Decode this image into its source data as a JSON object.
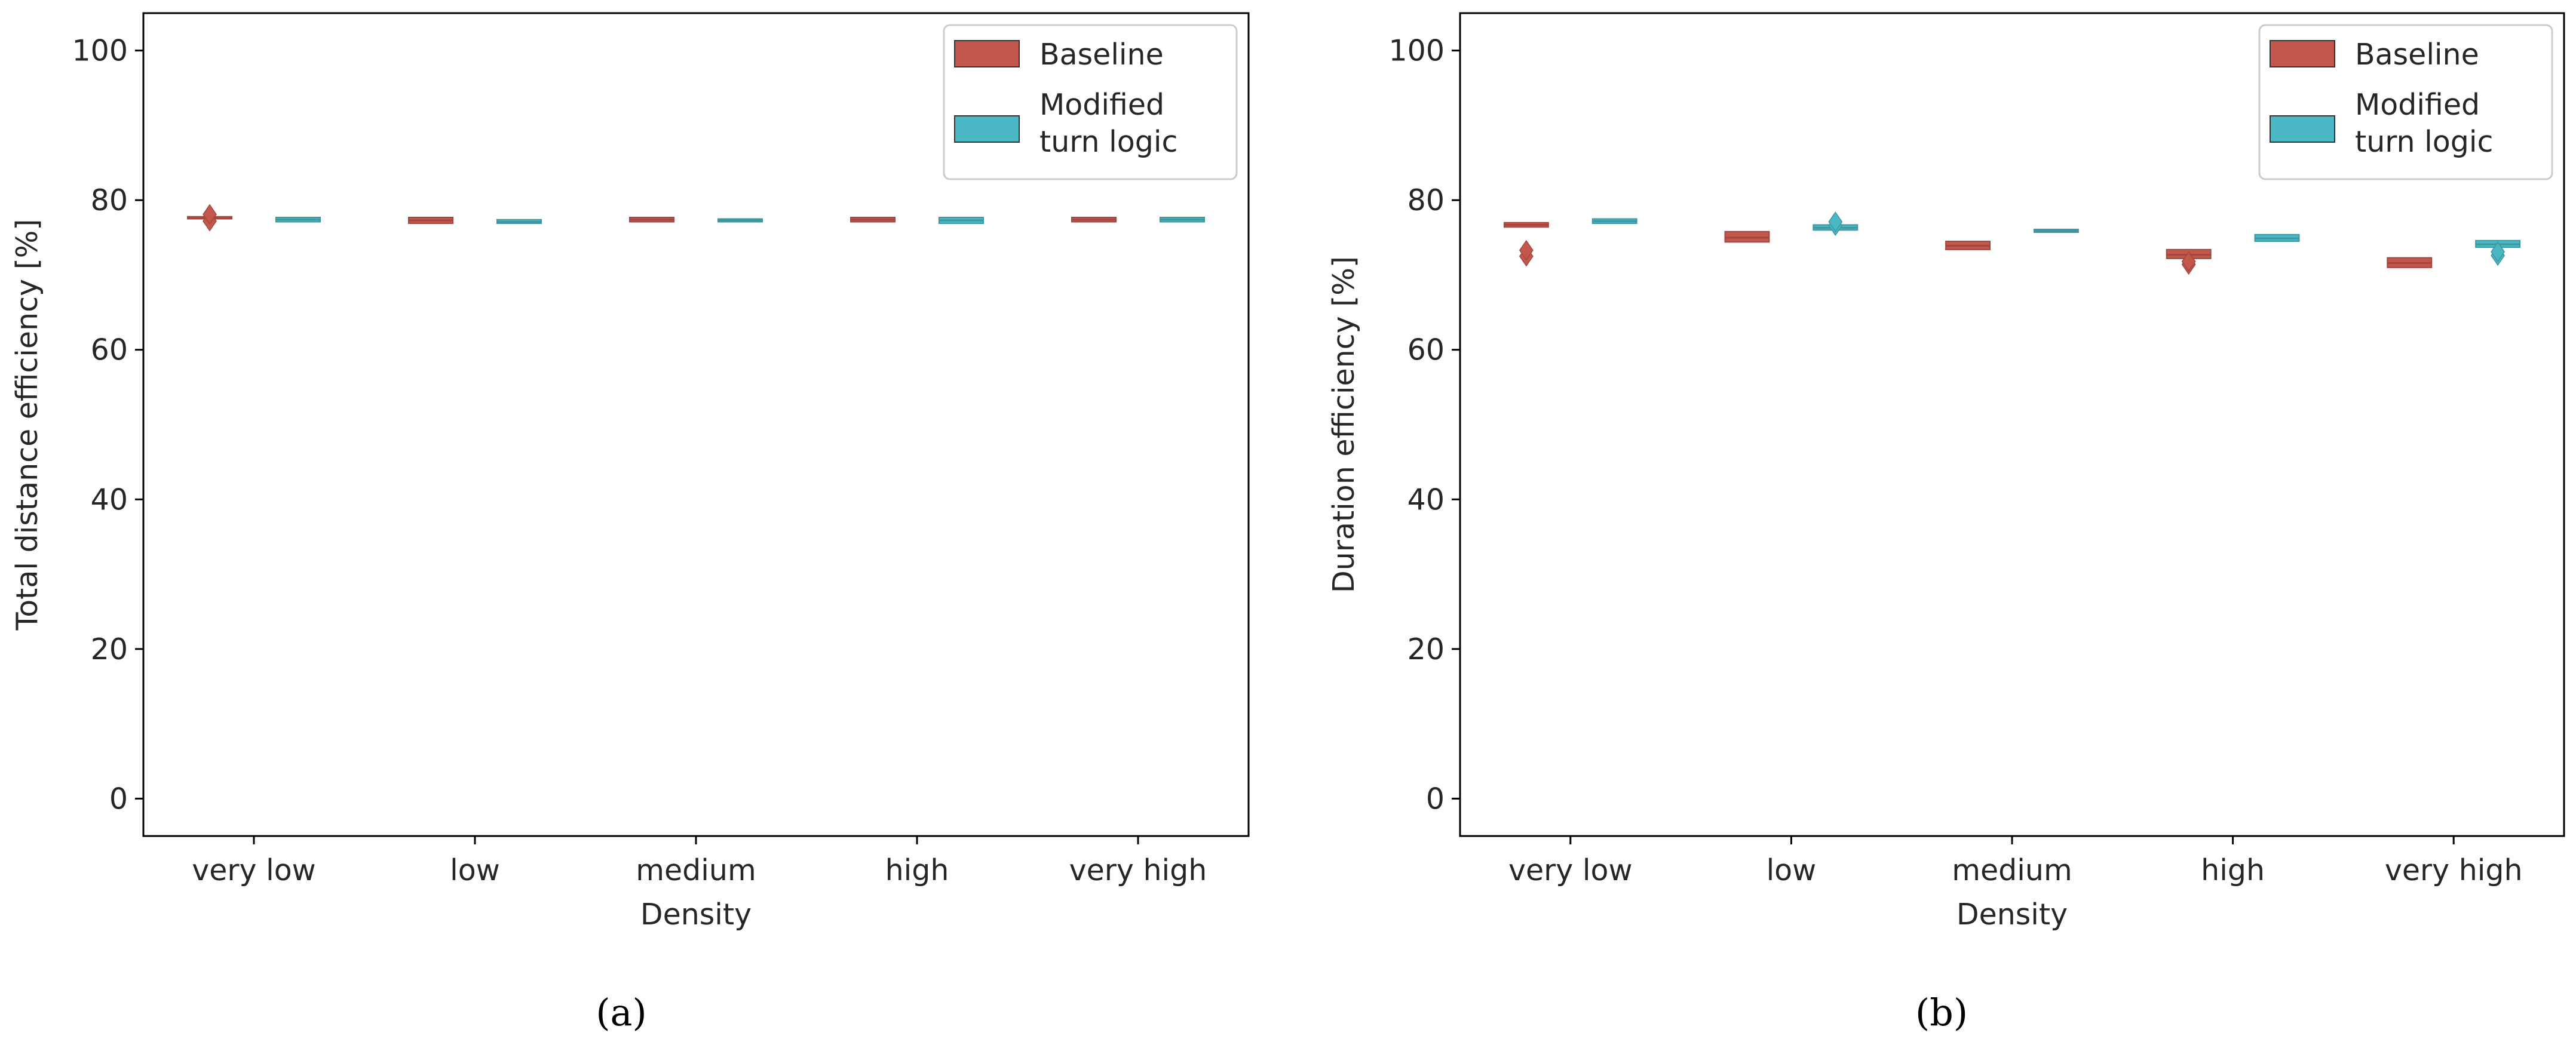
{
  "colors": {
    "baseline": "#c4574c",
    "modified": "#4ab8c4"
  },
  "chart_data": [
    {
      "type": "box",
      "caption": "(a)",
      "xlabel": "Density",
      "ylabel": "Total distance efficiency [%]",
      "categories": [
        "very low",
        "low",
        "medium",
        "high",
        "very high"
      ],
      "ylim": [
        -5,
        105
      ],
      "yticks": [
        0,
        20,
        40,
        60,
        80,
        100
      ],
      "legend": {
        "position": "top-right",
        "entries": [
          "Baseline",
          "Modified\nturn logic"
        ]
      },
      "series": [
        {
          "name": "Baseline",
          "color": "#c4574c",
          "values": [
            {
              "q1": 77.5,
              "median": 77.6,
              "q3": 77.8,
              "outliers": [
                77.2,
                78.1
              ]
            },
            {
              "q1": 76.9,
              "median": 77.3,
              "q3": 77.7,
              "outliers": []
            },
            {
              "q1": 77.1,
              "median": 77.4,
              "q3": 77.7,
              "outliers": []
            },
            {
              "q1": 77.1,
              "median": 77.4,
              "q3": 77.7,
              "outliers": []
            },
            {
              "q1": 77.1,
              "median": 77.4,
              "q3": 77.7,
              "outliers": []
            }
          ]
        },
        {
          "name": "Modified turn logic",
          "color": "#4ab8c4",
          "values": [
            {
              "q1": 77.1,
              "median": 77.4,
              "q3": 77.7,
              "outliers": []
            },
            {
              "q1": 76.9,
              "median": 77.1,
              "q3": 77.4,
              "outliers": []
            },
            {
              "q1": 77.1,
              "median": 77.3,
              "q3": 77.5,
              "outliers": []
            },
            {
              "q1": 76.9,
              "median": 77.3,
              "q3": 77.7,
              "outliers": []
            },
            {
              "q1": 77.1,
              "median": 77.4,
              "q3": 77.7,
              "outliers": []
            }
          ]
        }
      ]
    },
    {
      "type": "box",
      "caption": "(b)",
      "xlabel": "Density",
      "ylabel": "Duration efficiency [%]",
      "categories": [
        "very low",
        "low",
        "medium",
        "high",
        "very high"
      ],
      "ylim": [
        -5,
        105
      ],
      "yticks": [
        0,
        20,
        40,
        60,
        80,
        100
      ],
      "legend": {
        "position": "top-right",
        "entries": [
          "Baseline",
          "Modified\nturn logic"
        ]
      },
      "series": [
        {
          "name": "Baseline",
          "color": "#c4574c",
          "values": [
            {
              "q1": 76.4,
              "median": 76.7,
              "q3": 77.0,
              "outliers": [
                72.5,
                73.3
              ]
            },
            {
              "q1": 74.4,
              "median": 75.0,
              "q3": 75.8,
              "outliers": []
            },
            {
              "q1": 73.4,
              "median": 73.9,
              "q3": 74.5,
              "outliers": []
            },
            {
              "q1": 72.2,
              "median": 72.7,
              "q3": 73.4,
              "outliers": [
                71.4,
                71.8
              ]
            },
            {
              "q1": 71.0,
              "median": 71.6,
              "q3": 72.3,
              "outliers": []
            }
          ]
        },
        {
          "name": "Modified turn logic",
          "color": "#4ab8c4",
          "values": [
            {
              "q1": 76.9,
              "median": 77.2,
              "q3": 77.5,
              "outliers": []
            },
            {
              "q1": 76.0,
              "median": 76.3,
              "q3": 76.7,
              "outliers": [
                76.6,
                77.1
              ]
            },
            {
              "q1": 75.7,
              "median": 75.9,
              "q3": 76.1,
              "outliers": []
            },
            {
              "q1": 74.5,
              "median": 74.9,
              "q3": 75.4,
              "outliers": []
            },
            {
              "q1": 73.7,
              "median": 74.1,
              "q3": 74.6,
              "outliers": [
                72.6,
                73.1
              ]
            }
          ]
        }
      ]
    }
  ]
}
